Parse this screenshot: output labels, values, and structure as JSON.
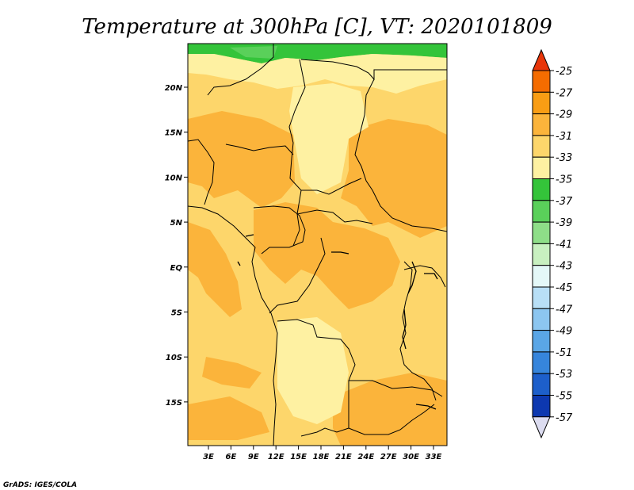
{
  "chart_data": {
    "type": "heatmap",
    "title": "Temperature at 300hPa [C], VT: 2020101809",
    "x_ticks": [
      "3E",
      "6E",
      "9E",
      "12E",
      "15E",
      "18E",
      "21E",
      "24E",
      "27E",
      "30E",
      "33E"
    ],
    "y_ticks": [
      "20N",
      "15N",
      "10N",
      "5N",
      "EQ",
      "5S",
      "10S",
      "15S"
    ],
    "colorbar": {
      "labels": [
        "-25",
        "-27",
        "-29",
        "-31",
        "-33",
        "-35",
        "-37",
        "-39",
        "-41",
        "-43",
        "-45",
        "-47",
        "-49",
        "-51",
        "-53",
        "-55",
        "-57"
      ],
      "colors": [
        "#e8360a",
        "#f46c00",
        "#f99d14",
        "#fbb43b",
        "#fdd66b",
        "#fef1a2",
        "#34c43a",
        "#5ad05a",
        "#8ede88",
        "#c8f0c0",
        "#e4f8f8",
        "#b8dff6",
        "#8cc6f0",
        "#5aa6e6",
        "#3685dc",
        "#1d5fcb",
        "#0d38b0",
        "#0a1060",
        "#dcdcf0"
      ]
    },
    "credit": "GrADS: IGES/COLA"
  }
}
